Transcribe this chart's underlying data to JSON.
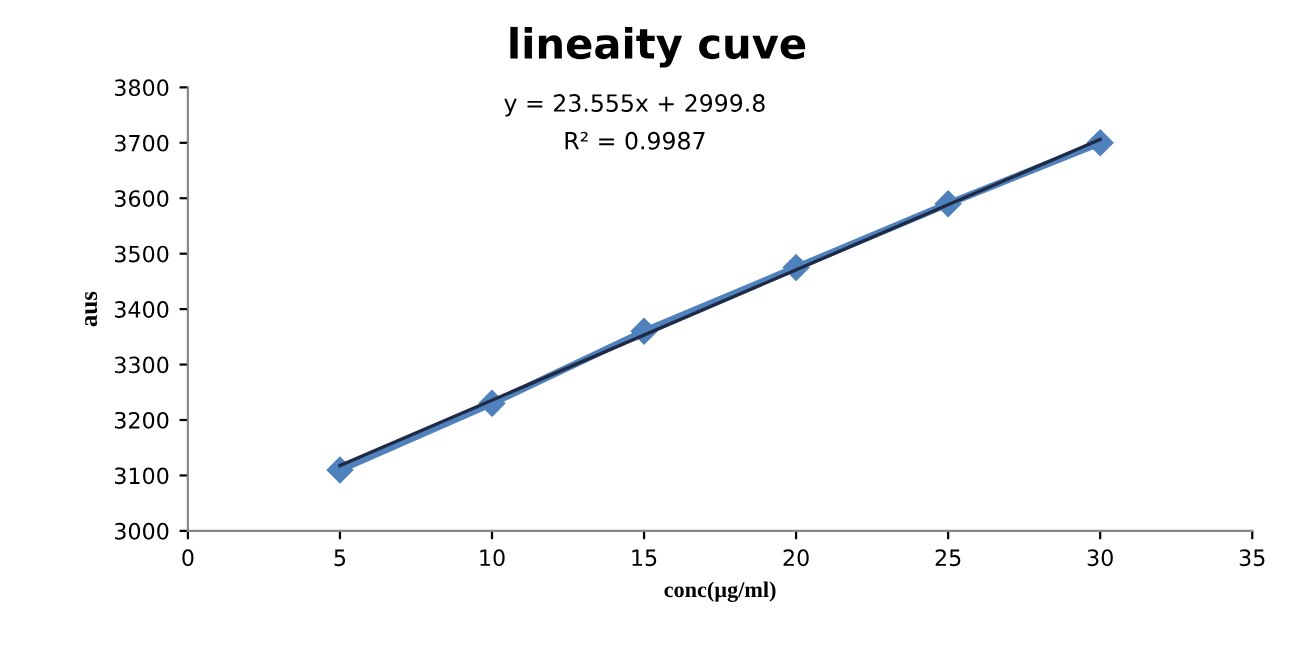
{
  "chart_data": {
    "type": "line",
    "title": "lineaity cuve",
    "xlabel": "conc(µg/ml)",
    "ylabel": "aus",
    "series": [
      {
        "color": "#4f81bd",
        "marker": "diamond",
        "x": [
          5,
          10,
          15,
          20,
          25,
          30
        ],
        "values": [
          3110,
          3230,
          3360,
          3475,
          3590,
          3700
        ]
      },
      {
        "type": "line",
        "color": "#1f2a44",
        "marker": "none",
        "x": [
          5,
          30
        ],
        "values": [
          3118,
          3706
        ]
      }
    ],
    "annotations": [
      "y = 23.555x + 2999.8",
      "R² = 0.9987"
    ],
    "xlim": [
      0,
      35
    ],
    "xticks": [
      0,
      5,
      10,
      15,
      20,
      25,
      30,
      35
    ],
    "ylim": [
      3000,
      3800
    ],
    "yticks": [
      3000,
      3100,
      3200,
      3300,
      3400,
      3500,
      3600,
      3700,
      3800
    ],
    "grid": false,
    "legend": false
  }
}
